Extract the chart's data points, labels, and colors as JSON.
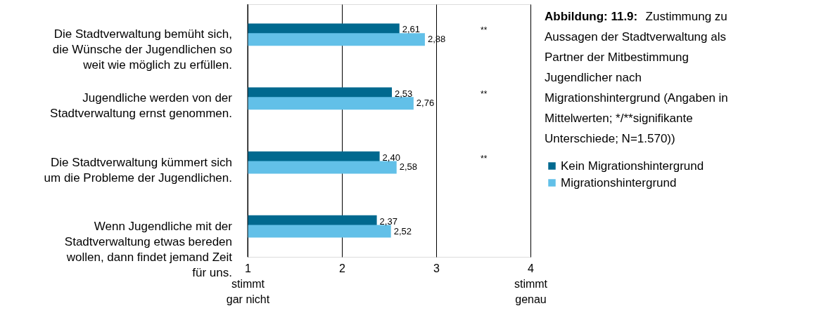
{
  "chart_data": {
    "type": "bar",
    "orientation": "horizontal",
    "title": "Abbildung: 11.9:",
    "subtitle": "Zustimmung zu Aussagen der Stadtverwaltung als Partner der Mitbestimmung Jugendlicher nach Migrationshintergrund (Angaben in Mittelwerten; */**signifikante Unterschiede; N=1.570))",
    "categories": [
      "Die Stadtverwaltung bemüht sich, die Wünsche der Jugendlichen so weit wie möglich zu erfüllen.",
      "Jugendliche werden von der Stadtverwaltung ernst genommen.",
      "Die Stadtverwaltung kümmert sich um die Probleme der Jugendlichen.",
      "Wenn Jugendliche mit der Stadtverwaltung etwas bereden wollen, dann findet jemand Zeit für uns."
    ],
    "series": [
      {
        "name": "Kein Migrationshintergrund",
        "color": "#00698f",
        "values": [
          2.61,
          2.53,
          2.4,
          2.37
        ],
        "value_labels": [
          "2,61",
          "2,53",
          "2,40",
          "2,37"
        ]
      },
      {
        "name": "Migrationshintergrund",
        "color": "#62c0e8",
        "values": [
          2.88,
          2.76,
          2.58,
          2.52
        ],
        "value_labels": [
          "2,88",
          "2,76",
          "2,58",
          "2,52"
        ]
      }
    ],
    "xlim": [
      1,
      4
    ],
    "xticks": [
      {
        "value": 1,
        "label": "1\nstimmt\ngar nicht"
      },
      {
        "value": 2,
        "label": "2"
      },
      {
        "value": 3,
        "label": "3"
      },
      {
        "value": 4,
        "label": "4\nstimmt\ngenau"
      }
    ],
    "annotations": [
      "**",
      "**",
      "**"
    ],
    "grid": "x",
    "legend": "right"
  }
}
